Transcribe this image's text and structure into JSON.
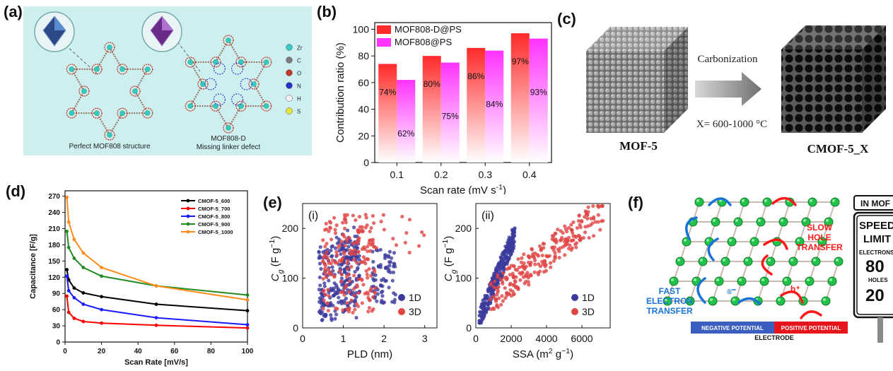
{
  "panels": {
    "a": {
      "label": "(a)",
      "caption_left": "Perfect MOF808 structure",
      "caption_right_1": "MOF808-D",
      "caption_right_2": "Missing linker defect",
      "elements": [
        {
          "symbol": "Zr",
          "color": "#35c9c9"
        },
        {
          "symbol": "C",
          "color": "#7a7a7a"
        },
        {
          "symbol": "O",
          "color": "#c0392b"
        },
        {
          "symbol": "N",
          "color": "#2233cc"
        },
        {
          "symbol": "H",
          "color": "#f2f2f2"
        },
        {
          "symbol": "S",
          "color": "#e6e633"
        }
      ]
    },
    "b": {
      "label": "(b)"
    },
    "c": {
      "label": "(c)",
      "arrow_text": "Carbonization",
      "condition": "X= 600-1000 °C",
      "left_name": "MOF-5",
      "right_name": "CMOF-5_X"
    },
    "d": {
      "label": "(d)"
    },
    "e": {
      "label": "(e)",
      "sub_i": "(i)",
      "sub_ii": "(ii)"
    },
    "f": {
      "label": "(f)",
      "slow": [
        "SLOW",
        "HOLE",
        "TRANSFER"
      ],
      "fast": [
        "FAST",
        "ELECTRON",
        "TRANSFER"
      ],
      "e_symbol": "e⁻",
      "h_symbol": "h⁺",
      "neg": "NEGATIVE POTENTIAL",
      "pos": "POSITIVE POTENTIAL",
      "electrode": "ELECTRODE",
      "sign_top": "IN MOF",
      "sign_speed": "SPEED",
      "sign_limit": "LIMIT",
      "sign_electrons": "ELECTRONS",
      "sign_e_val": "80",
      "sign_holes": "HOLES",
      "sign_h_val": "20"
    }
  },
  "chart_data": [
    {
      "id": "b",
      "type": "bar",
      "categories": [
        "0.1",
        "0.2",
        "0.3",
        "0.4"
      ],
      "series": [
        {
          "name": "MOF808-D@PS",
          "color": "#ff2a2a",
          "values": [
            74,
            80,
            86,
            97
          ],
          "labels": [
            "74%",
            "80%",
            "86%",
            "97%"
          ]
        },
        {
          "name": "MOF808@PS",
          "color": "#ff33ff",
          "values": [
            62,
            75,
            84,
            93
          ],
          "labels": [
            "62%",
            "75%",
            "84%",
            "93%"
          ]
        }
      ],
      "xlabel": "Scan rate (mV s",
      "xlabel_sup": "-1",
      "xlabel_end": ")",
      "ylabel": "Contribution ratio (%)",
      "ylim": [
        0,
        105
      ],
      "yticks": [
        0,
        20,
        40,
        60,
        80,
        100
      ],
      "legend": "top-left"
    },
    {
      "id": "d",
      "type": "line",
      "x": [
        1,
        2,
        5,
        10,
        20,
        50,
        100
      ],
      "series": [
        {
          "name": "CMOF-5_600",
          "color": "#000000",
          "values": [
            134,
            115,
            100,
            91,
            84,
            70,
            58
          ]
        },
        {
          "name": "CMOF-5_700",
          "color": "#ff0000",
          "values": [
            85,
            55,
            44,
            38,
            35,
            31,
            26
          ]
        },
        {
          "name": "CMOF-5_800",
          "color": "#1a1aff",
          "values": [
            122,
            95,
            82,
            70,
            60,
            45,
            32
          ]
        },
        {
          "name": "CMOF-5_900",
          "color": "#228b22",
          "values": [
            205,
            175,
            155,
            138,
            122,
            104,
            87
          ]
        },
        {
          "name": "CMOF-5_1000",
          "color": "#ff8c1a",
          "values": [
            268,
            222,
            190,
            165,
            138,
            104,
            78
          ]
        }
      ],
      "xlabel": "Scan Rate [mV/s]",
      "ylabel": "Capacitance [F/g]",
      "xlim": [
        0,
        100
      ],
      "ylim": [
        0,
        280
      ],
      "xticks": [
        0,
        20,
        40,
        60,
        80,
        100
      ],
      "yticks": [
        0,
        30,
        60,
        90,
        120,
        150,
        180,
        210,
        240,
        270
      ],
      "legend": "top-right"
    },
    {
      "id": "e_i",
      "type": "scatter",
      "series": [
        {
          "name": "1D",
          "color": "#3b3b9e"
        },
        {
          "name": "3D",
          "color": "#e04545"
        }
      ],
      "xlabel": "PLD (nm)",
      "ylabel": "C",
      "ylabel_sub": "g",
      "ylabel_unit": "(F g",
      "ylabel_sup": "−1",
      "ylabel_end": ")",
      "xlim": [
        0,
        3.3
      ],
      "ylim": [
        0,
        250
      ],
      "xticks": [
        0,
        1,
        2,
        3
      ],
      "yticks": [
        0,
        100,
        200
      ],
      "legend": "bottom-right"
    },
    {
      "id": "e_ii",
      "type": "scatter",
      "series": [
        {
          "name": "1D",
          "color": "#3b3b9e"
        },
        {
          "name": "3D",
          "color": "#e04545"
        }
      ],
      "xlabel": "SSA (m",
      "xlabel_sup": "2",
      "xlabel_end": " g",
      "xlabel_sup2": "−1",
      "xlabel_end2": ")",
      "ylabel": "C",
      "ylabel_sub": "g",
      "ylabel_unit": "(F g",
      "ylabel_sup": "−1",
      "ylabel_end": ")",
      "xlim": [
        0,
        7600
      ],
      "ylim": [
        0,
        250
      ],
      "xticks": [
        0,
        2000,
        4000,
        6000
      ],
      "yticks": [
        0,
        100,
        200
      ],
      "legend": "bottom-right"
    }
  ]
}
